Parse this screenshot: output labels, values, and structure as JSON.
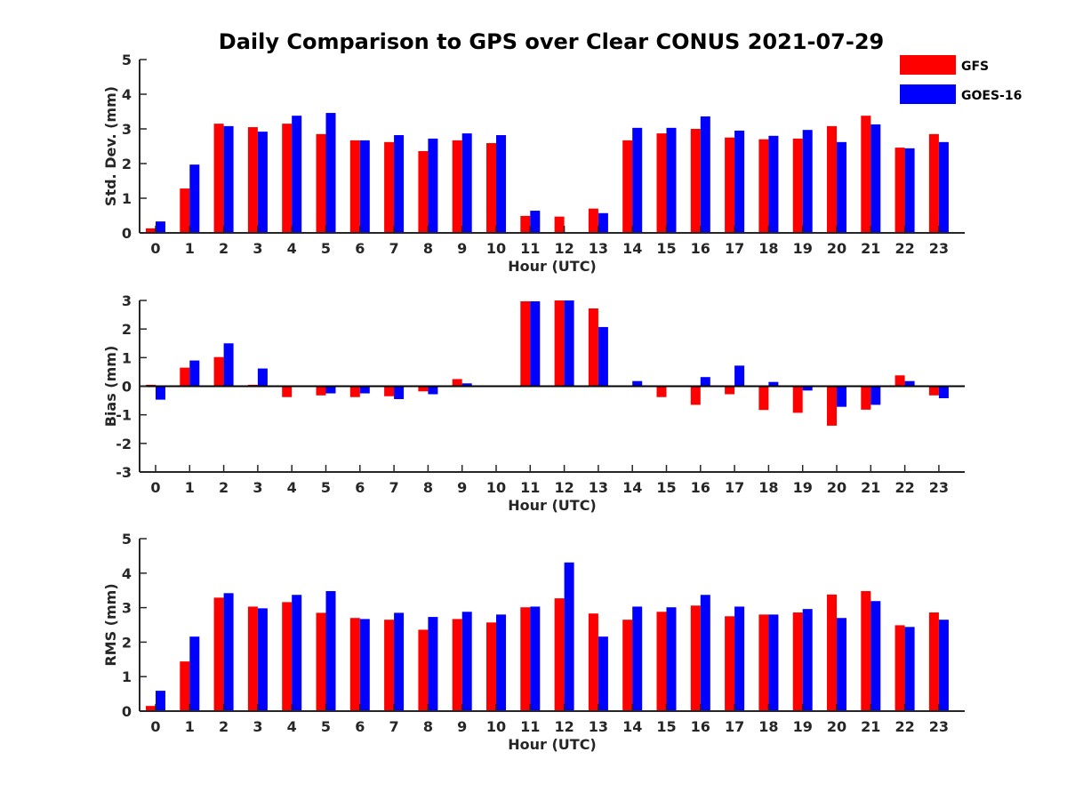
{
  "chart_data": {
    "type": "bar",
    "title": "Daily Comparison to GPS over Clear CONUS 2021-07-29",
    "legend": {
      "position": "top-right",
      "entries": [
        "GFS",
        "GOES-16"
      ]
    },
    "colors": {
      "GFS": "#ff0000",
      "GOES-16": "#0000ff"
    },
    "panels": [
      {
        "id": "std",
        "ylabel": "Std. Dev. (mm)",
        "xlabel": "Hour (UTC)",
        "ylim": [
          0,
          5
        ],
        "yticks": [
          "0",
          "1",
          "2",
          "3",
          "4",
          "5"
        ],
        "categories": [
          "0",
          "1",
          "2",
          "3",
          "4",
          "5",
          "6",
          "7",
          "8",
          "9",
          "10",
          "11",
          "12",
          "13",
          "14",
          "15",
          "16",
          "17",
          "18",
          "19",
          "20",
          "21",
          "22",
          "23"
        ],
        "series": [
          {
            "name": "GFS",
            "values": [
              0.13,
              1.28,
              3.15,
              3.05,
              3.15,
              2.85,
              2.67,
              2.62,
              2.36,
              2.67,
              2.59,
              0.49,
              0.47,
              0.7,
              2.67,
              2.87,
              3.0,
              2.75,
              2.7,
              2.72,
              3.08,
              3.38,
              2.46,
              2.85
            ]
          },
          {
            "name": "GOES-16",
            "values": [
              0.33,
              1.97,
              3.08,
              2.92,
              3.38,
              3.46,
              2.67,
              2.82,
              2.72,
              2.87,
              2.82,
              0.64,
              0.0,
              0.57,
              3.03,
              3.03,
              3.36,
              2.95,
              2.8,
              2.97,
              2.62,
              3.13,
              2.44,
              2.62
            ]
          }
        ]
      },
      {
        "id": "bias",
        "ylabel": "Bias (mm)",
        "xlabel": "Hour (UTC)",
        "ylim": [
          -3,
          3
        ],
        "yticks": [
          "-3",
          "-2",
          "-1",
          "0",
          "1",
          "2",
          "3"
        ],
        "categories": [
          "0",
          "1",
          "2",
          "3",
          "4",
          "5",
          "6",
          "7",
          "8",
          "9",
          "10",
          "11",
          "12",
          "13",
          "14",
          "15",
          "16",
          "17",
          "18",
          "19",
          "20",
          "21",
          "22",
          "23"
        ],
        "series": [
          {
            "name": "GFS",
            "values": [
              0.05,
              0.65,
              1.02,
              0.05,
              -0.38,
              -0.32,
              -0.38,
              -0.35,
              -0.18,
              0.25,
              0.0,
              2.97,
              3.0,
              2.72,
              -0.03,
              -0.38,
              -0.65,
              -0.28,
              -0.83,
              -0.93,
              -1.38,
              -0.82,
              0.38,
              -0.32
            ]
          },
          {
            "name": "GOES-16",
            "values": [
              -0.47,
              0.9,
              1.5,
              0.62,
              0.0,
              -0.25,
              -0.25,
              -0.45,
              -0.28,
              0.1,
              0.0,
              2.97,
              3.0,
              2.07,
              0.18,
              0.0,
              0.32,
              0.72,
              0.15,
              -0.15,
              -0.72,
              -0.65,
              0.18,
              -0.42
            ]
          }
        ]
      },
      {
        "id": "rms",
        "ylabel": "RMS (mm)",
        "xlabel": "Hour (UTC)",
        "ylim": [
          0,
          5
        ],
        "yticks": [
          "0",
          "1",
          "2",
          "3",
          "4",
          "5"
        ],
        "categories": [
          "0",
          "1",
          "2",
          "3",
          "4",
          "5",
          "6",
          "7",
          "8",
          "9",
          "10",
          "11",
          "12",
          "13",
          "14",
          "15",
          "16",
          "17",
          "18",
          "19",
          "20",
          "21",
          "22",
          "23"
        ],
        "series": [
          {
            "name": "GFS",
            "values": [
              0.15,
              1.44,
              3.29,
              3.03,
              3.16,
              2.85,
              2.7,
              2.65,
              2.36,
              2.67,
              2.57,
              3.01,
              3.27,
              2.83,
              2.65,
              2.88,
              3.06,
              2.75,
              2.8,
              2.86,
              3.38,
              3.48,
              2.49,
              2.86
            ]
          },
          {
            "name": "GOES-16",
            "values": [
              0.59,
              2.16,
              3.42,
              2.98,
              3.37,
              3.48,
              2.67,
              2.85,
              2.73,
              2.88,
              2.8,
              3.03,
              4.31,
              2.16,
              3.03,
              3.01,
              3.37,
              3.03,
              2.8,
              2.96,
              2.7,
              3.19,
              2.44,
              2.65
            ]
          }
        ]
      }
    ]
  }
}
